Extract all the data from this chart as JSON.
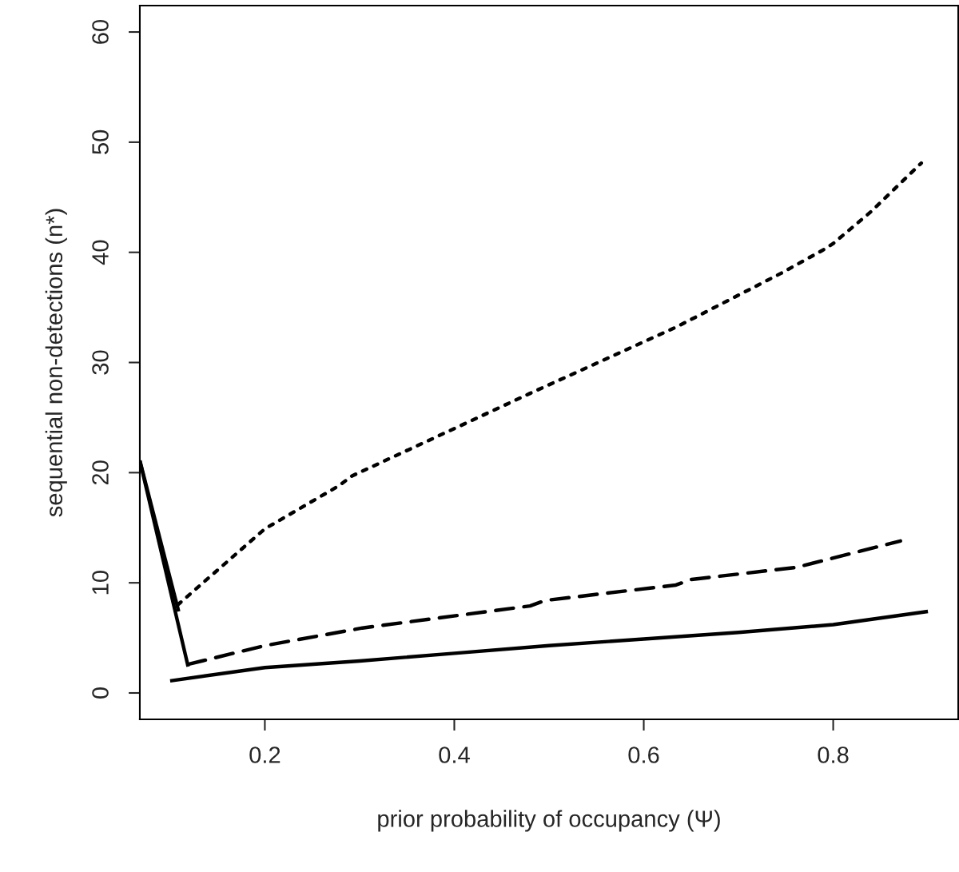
{
  "chart_data": {
    "type": "line",
    "xlabel": "prior probability of occupancy (Ψ)",
    "ylabel": "sequential non-detections (n*)",
    "xlim": [
      0.068,
      0.932
    ],
    "xticks": [
      0.2,
      0.4,
      0.6,
      0.8
    ],
    "ylim": [
      -2.4,
      62.4
    ],
    "yticks": [
      0,
      10,
      20,
      30,
      40,
      50,
      60
    ],
    "grid": false,
    "series": [
      {
        "color": "#000000",
        "line_style": "solid",
        "x": [
          0.1,
          0.2,
          0.3,
          0.4,
          0.5,
          0.6,
          0.7,
          0.8,
          0.9
        ],
        "values": [
          1.1,
          2.3,
          2.9,
          3.6,
          4.3,
          4.9,
          5.5,
          6.2,
          7.4
        ]
      },
      {
        "color": "#000000",
        "line_style": "dashed",
        "x": [
          0.119,
          0.2,
          0.303,
          0.48,
          0.496,
          0.634,
          0.65,
          0.761,
          0.871
        ],
        "values": [
          2.6,
          4.3,
          5.9,
          7.9,
          8.4,
          9.8,
          10.3,
          11.4,
          13.8
        ]
      },
      {
        "color": "#000000",
        "line_style": "dotted",
        "x": [
          0.108,
          0.2,
          0.278,
          0.292,
          0.4,
          0.48,
          0.634,
          0.745,
          0.789,
          0.8,
          0.84,
          0.893
        ],
        "values": [
          8.0,
          14.9,
          18.8,
          19.7,
          24.0,
          27.2,
          33.2,
          38.1,
          40.2,
          40.8,
          43.7,
          48.1
        ]
      },
      {
        "color": "#000000",
        "line_style": "solid",
        "x": [
          0.068,
          0.109
        ],
        "values": [
          21.1,
          7.4
        ]
      },
      {
        "color": "#000000",
        "line_style": "solid",
        "x": [
          0.068,
          0.119
        ],
        "values": [
          21.1,
          2.4
        ]
      }
    ]
  }
}
